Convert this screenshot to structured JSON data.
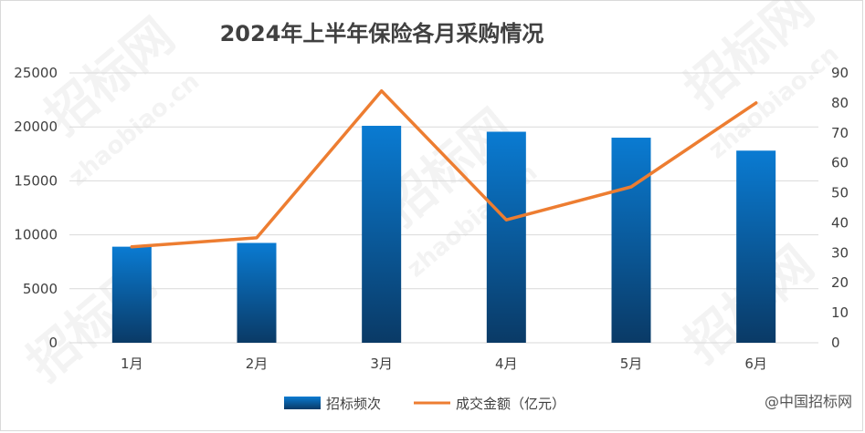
{
  "chart_data": {
    "type": "bar",
    "title": "2024年上半年保险各月采购情况",
    "categories": [
      "1月",
      "2月",
      "3月",
      "4月",
      "5月",
      "6月"
    ],
    "series": [
      {
        "name": "招标频次",
        "type": "bar",
        "axis": "left",
        "values": [
          8900,
          9250,
          20100,
          19550,
          19000,
          17800
        ]
      },
      {
        "name": "成交金额（亿元）",
        "type": "line",
        "axis": "right",
        "values": [
          32,
          35,
          84,
          41,
          52,
          80
        ]
      }
    ],
    "y_left": {
      "min": 0,
      "max": 25000,
      "ticks": [
        0,
        5000,
        10000,
        15000,
        20000,
        25000
      ]
    },
    "y_right": {
      "min": 0,
      "max": 90,
      "ticks": [
        0,
        10,
        20,
        30,
        40,
        50,
        60,
        70,
        80,
        90
      ]
    },
    "legend_position": "bottom",
    "grid": true,
    "colors": {
      "bar_top": "#0a7bd2",
      "bar_bottom": "#0a3a66",
      "line": "#ed7d31",
      "grid": "#d9d9d9",
      "text": "#404040"
    }
  },
  "watermark": {
    "brand": "招标网",
    "domain": "zhaobiao.cn"
  },
  "footer": {
    "text": "@中国招标网"
  }
}
